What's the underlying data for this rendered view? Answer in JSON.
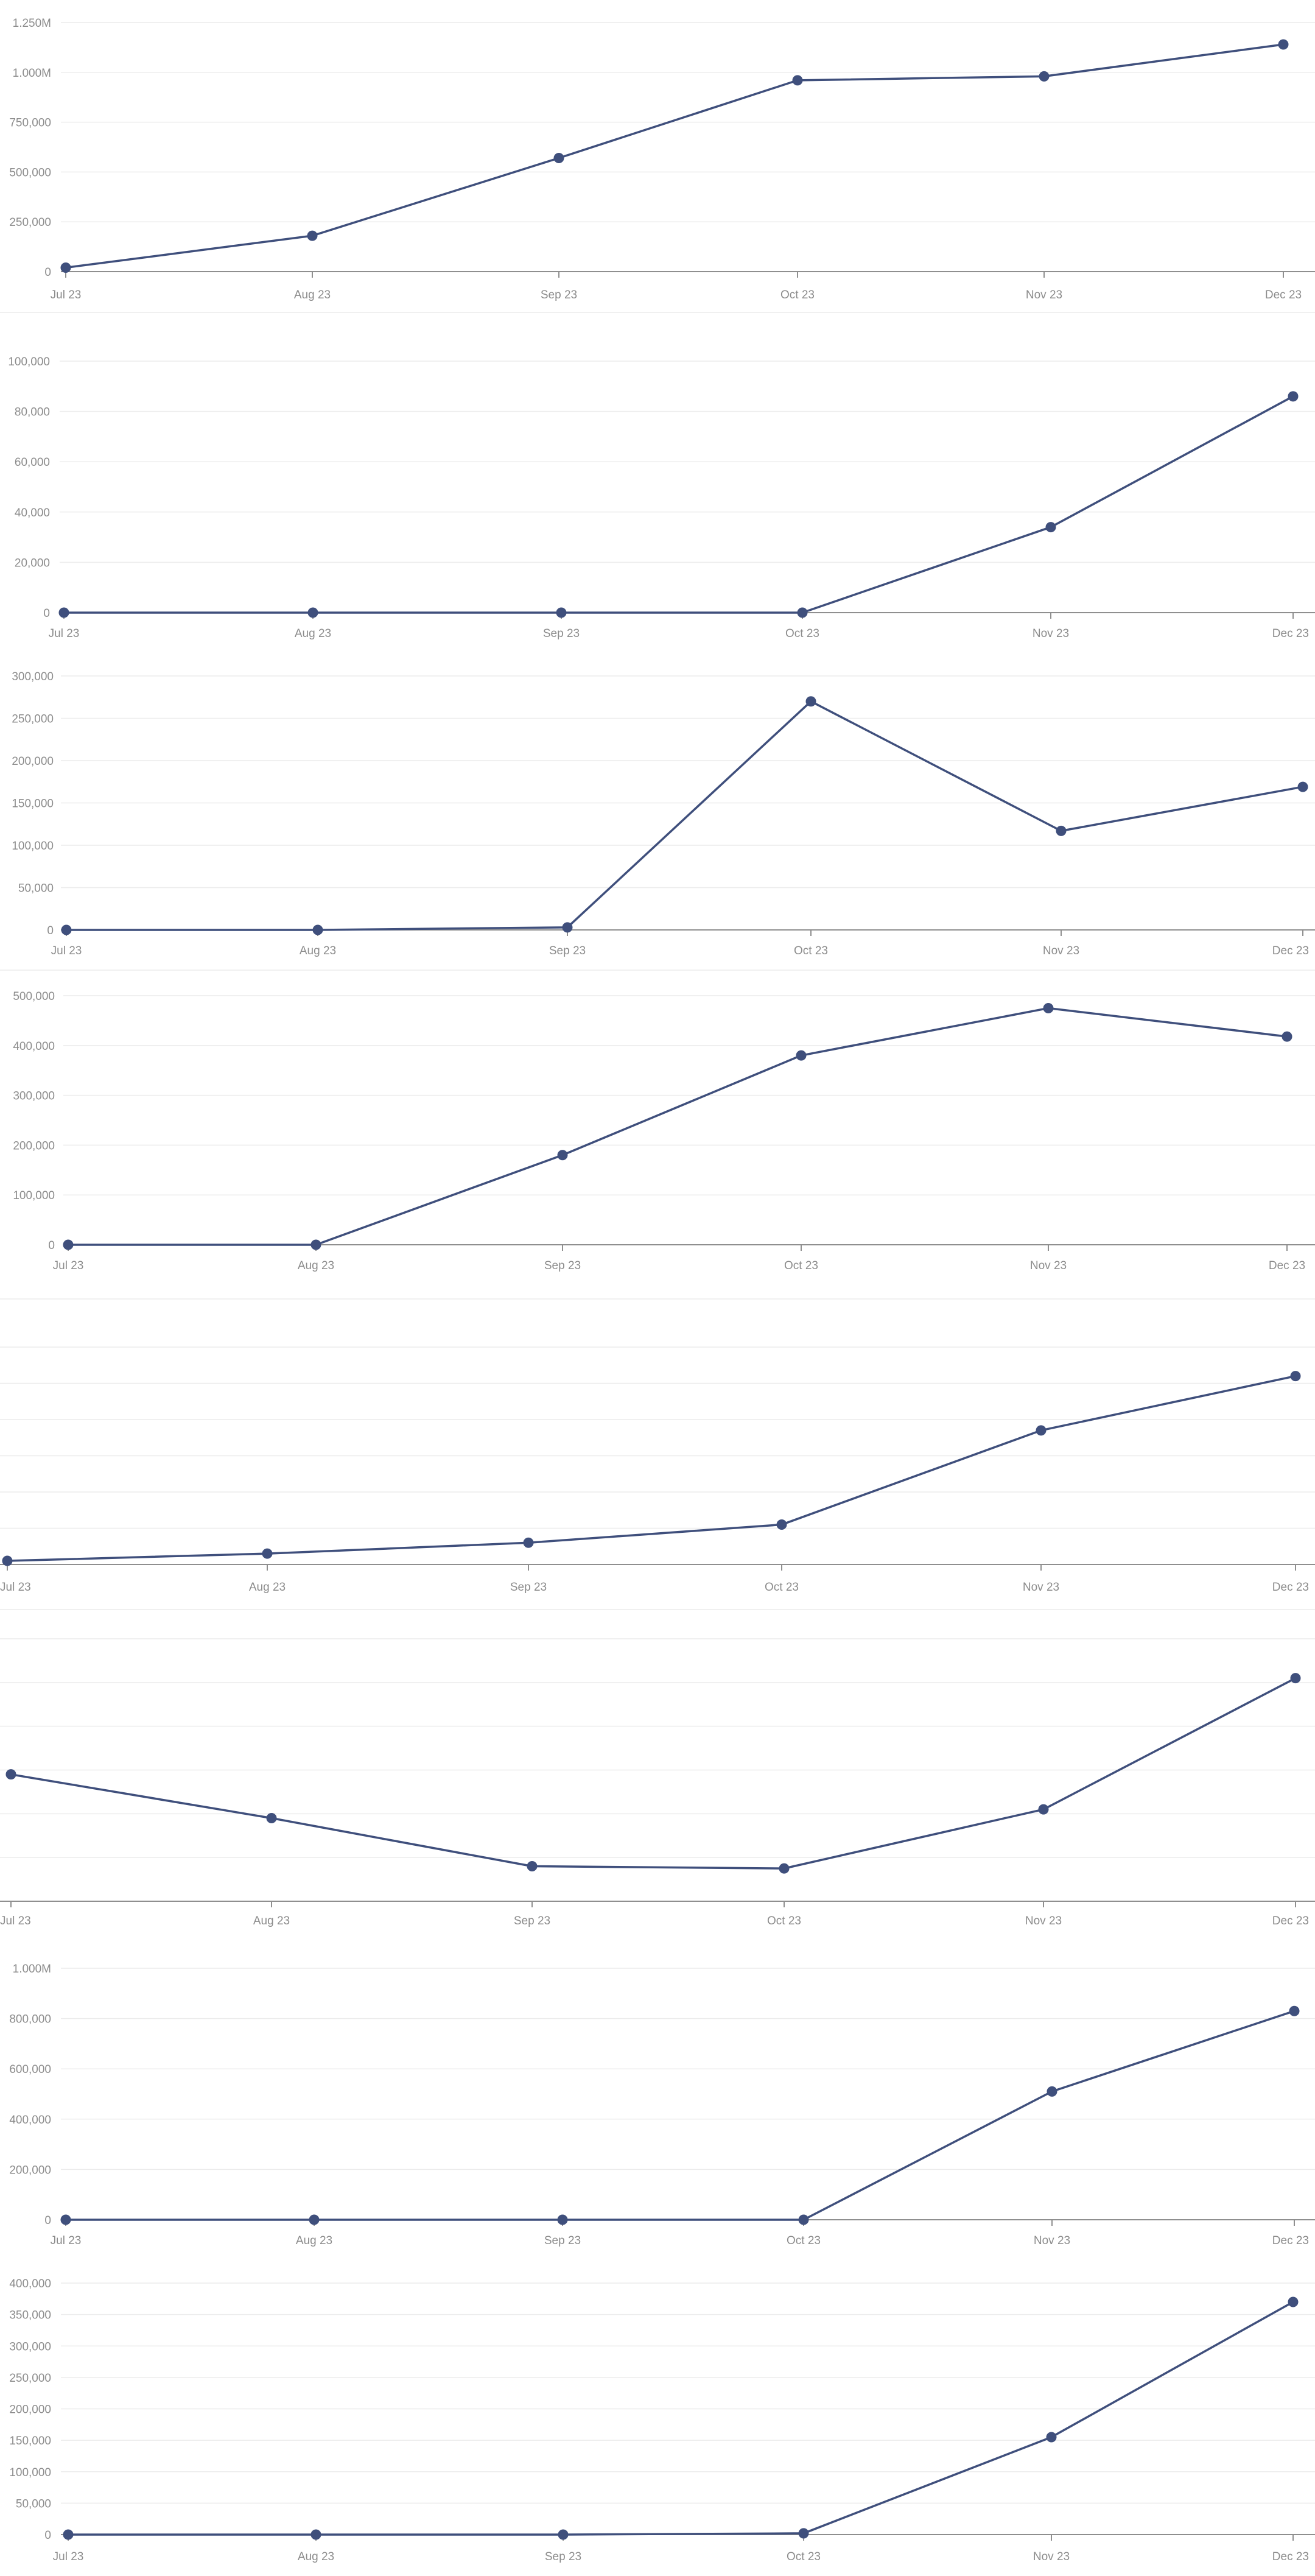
{
  "colors": {
    "series": "#3f4f7c",
    "axis": "#8f8f8f",
    "grid": "#ececec",
    "tick_text": "#8c8c8c"
  },
  "chart_data": [
    {
      "type": "line",
      "categories": [
        "Jul 23",
        "Aug 23",
        "Sep 23",
        "Oct 23",
        "Nov 23",
        "Dec 23"
      ],
      "values": [
        20000,
        180000,
        570000,
        960000,
        980000,
        1140000
      ],
      "yticks": [
        "0",
        "250,000",
        "500,000",
        "750,000",
        "1.000M",
        "1.250M"
      ],
      "ytick_values": [
        0,
        250000,
        500000,
        750000,
        1000000,
        1250000
      ],
      "ylim": [
        0,
        1250000
      ],
      "grid": true,
      "legend": "none"
    },
    {
      "type": "line",
      "categories": [
        "Jul 23",
        "Aug 23",
        "Sep 23",
        "Oct 23",
        "Nov 23",
        "Dec 23"
      ],
      "values": [
        0,
        0,
        0,
        0,
        34000,
        86000
      ],
      "yticks": [
        "0",
        "20,000",
        "40,000",
        "60,000",
        "80,000",
        "100,000"
      ],
      "ytick_values": [
        0,
        20000,
        40000,
        60000,
        80000,
        100000
      ],
      "ylim": [
        0,
        100000
      ],
      "grid": true,
      "legend": "none"
    },
    {
      "type": "line",
      "categories": [
        "Jul 23",
        "Aug 23",
        "Sep 23",
        "Oct 23",
        "Nov 23",
        "Dec 23"
      ],
      "values": [
        0,
        0,
        3000,
        270000,
        117000,
        169000
      ],
      "yticks": [
        "0",
        "50,000",
        "100,000",
        "150,000",
        "200,000",
        "250,000",
        "300,000"
      ],
      "ytick_values": [
        0,
        50000,
        100000,
        150000,
        200000,
        250000,
        300000
      ],
      "ylim": [
        0,
        300000
      ],
      "grid": true,
      "legend": "none"
    },
    {
      "type": "line",
      "categories": [
        "Jul 23",
        "Aug 23",
        "Sep 23",
        "Oct 23",
        "Nov 23",
        "Dec 23"
      ],
      "values": [
        0,
        0,
        180000,
        380000,
        475000,
        418000
      ],
      "yticks": [
        "0",
        "100,000",
        "200,000",
        "300,000",
        "400,000",
        "500,000"
      ],
      "ytick_values": [
        0,
        100000,
        200000,
        300000,
        400000,
        500000
      ],
      "ylim": [
        0,
        500000
      ],
      "grid": true,
      "legend": "none"
    },
    {
      "type": "line",
      "categories": [
        "Jul 23",
        "Aug 23",
        "Sep 23",
        "Oct 23",
        "Nov 23",
        "Dec 23"
      ],
      "values": [
        0.1,
        0.3,
        0.6,
        1.1,
        3.7,
        5.2
      ],
      "yticks": [],
      "ytick_values": [],
      "gridlines": [
        0,
        1,
        2,
        3,
        4,
        5,
        6
      ],
      "ylim": [
        0,
        6
      ],
      "grid": true,
      "legend": "none"
    },
    {
      "type": "line",
      "categories": [
        "Jul 23",
        "Aug 23",
        "Sep 23",
        "Oct 23",
        "Nov 23",
        "Dec 23"
      ],
      "values": [
        2.9,
        1.9,
        0.8,
        0.75,
        2.1,
        5.1
      ],
      "yticks": [],
      "ytick_values": [],
      "gridlines": [
        0,
        1,
        2,
        3,
        4,
        5,
        6
      ],
      "ylim": [
        0,
        6
      ],
      "grid": true,
      "legend": "none"
    },
    {
      "type": "line",
      "categories": [
        "Jul 23",
        "Aug 23",
        "Sep 23",
        "Oct 23",
        "Nov 23",
        "Dec 23"
      ],
      "values": [
        0,
        0,
        0,
        0,
        510000,
        830000
      ],
      "yticks": [
        "0",
        "200,000",
        "400,000",
        "600,000",
        "800,000",
        "1.000M"
      ],
      "ytick_values": [
        0,
        200000,
        400000,
        600000,
        800000,
        1000000
      ],
      "ylim": [
        0,
        1000000
      ],
      "grid": true,
      "legend": "none"
    },
    {
      "type": "line",
      "categories": [
        "Jul 23",
        "Aug 23",
        "Sep 23",
        "Oct 23",
        "Nov 23",
        "Dec 23"
      ],
      "values": [
        0,
        0,
        0,
        2000,
        155000,
        370000
      ],
      "yticks": [
        "0",
        "50,000",
        "100,000",
        "150,000",
        "200,000",
        "250,000",
        "300,000",
        "350,000",
        "400,000"
      ],
      "ytick_values": [
        0,
        50000,
        100000,
        150000,
        200000,
        250000,
        300000,
        350000,
        400000
      ],
      "ylim": [
        0,
        400000
      ],
      "grid": true,
      "legend": "none"
    }
  ]
}
